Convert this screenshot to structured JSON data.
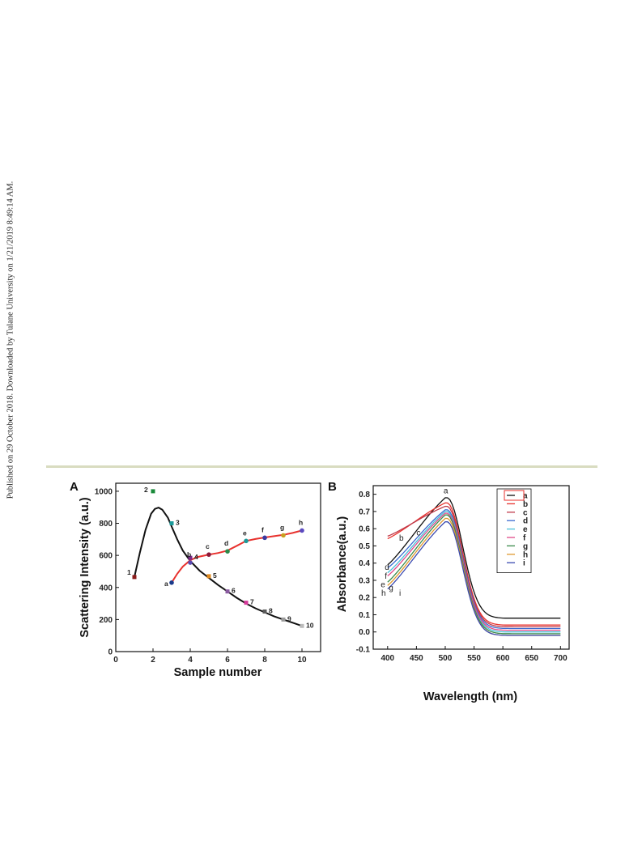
{
  "side_note": "Published on 29 October 2018. Downloaded by Tulane University on 1/21/2019 8:49:14 AM.",
  "chart_data": [
    {
      "panel": "A",
      "type": "line",
      "xlabel": "Sample number",
      "ylabel": "Scattering Intensity (a.u.)",
      "xlim": [
        0,
        11
      ],
      "ylim": [
        0,
        1050
      ],
      "xticks": [
        0,
        2,
        4,
        6,
        8,
        10
      ],
      "yticks": [
        0,
        200,
        400,
        600,
        800,
        1000
      ],
      "series": [
        {
          "color": "#111111",
          "labels": [
            "1",
            "2",
            "3",
            "4",
            "5",
            "6",
            "7",
            "8",
            "9",
            "10"
          ],
          "x": [
            1,
            2,
            3,
            4,
            5,
            6,
            7,
            8,
            9,
            10
          ],
          "y": [
            465,
            1000,
            800,
            585,
            470,
            375,
            305,
            250,
            200,
            160
          ],
          "point_colors": [
            "#8b1a1a",
            "#1a8a3a",
            "#1a9a9a",
            "#7a2a8a",
            "#e08a20",
            "#8a5aa0",
            "#d63a9a",
            "#5a5a5a",
            "#9a9a9a",
            "#bbbbbb"
          ],
          "curve": {
            "x": [
              1,
              1.3,
              1.6,
              1.9,
              2.1,
              2.3,
              2.5,
              2.8,
              3.0,
              3.3,
              3.6,
              4.0,
              4.5,
              5.0,
              5.5,
              6.0,
              6.5,
              7.0,
              7.5,
              8.0,
              8.5,
              9.0,
              9.5,
              10.0
            ],
            "y": [
              465,
              620,
              760,
              860,
              890,
              898,
              885,
              835,
              780,
              700,
              630,
              565,
              505,
              460,
              415,
              375,
              335,
              300,
              270,
              245,
              220,
              200,
              180,
              160
            ]
          }
        },
        {
          "color": "#e8322e",
          "labels": [
            "a",
            "b",
            "c",
            "d",
            "e",
            "f",
            "g",
            "h"
          ],
          "x": [
            3,
            4,
            5,
            6,
            7,
            8,
            9,
            10
          ],
          "y": [
            430,
            555,
            605,
            625,
            690,
            710,
            725,
            755
          ],
          "point_colors": [
            "#1a3a8a",
            "#5a4ab0",
            "#8b1a3a",
            "#2a8a4a",
            "#1a9a9a",
            "#3a3aa0",
            "#c8a020",
            "#5a4ac0"
          ],
          "curve": {
            "x": [
              3,
              3.3,
              3.6,
              4.0,
              4.4,
              5.0,
              5.5,
              6.0,
              6.5,
              7.0,
              7.5,
              8.0,
              8.5,
              9.0,
              9.5,
              10.0
            ],
            "y": [
              430,
              485,
              530,
              570,
              590,
              605,
              615,
              630,
              660,
              690,
              702,
              712,
              720,
              728,
              740,
              755
            ]
          }
        }
      ]
    },
    {
      "panel": "B",
      "type": "line",
      "xlabel": "Wavelength (nm)",
      "ylabel": "Absorbance(a.u.)",
      "xlim": [
        375,
        715
      ],
      "ylim": [
        -0.1,
        0.85
      ],
      "xticks": [
        400,
        450,
        500,
        550,
        600,
        650,
        700
      ],
      "yticks": [
        -0.1,
        0.0,
        0.1,
        0.2,
        0.3,
        0.4,
        0.5,
        0.6,
        0.7,
        0.8
      ],
      "legend": {
        "placement": "top-right",
        "entries": [
          "a",
          "b",
          "c",
          "d",
          "e",
          "f",
          "g",
          "h",
          "i"
        ]
      },
      "curve_labels": [
        "a",
        "b",
        "c",
        "d",
        "e",
        "f",
        "g",
        "h",
        "i"
      ],
      "series": [
        {
          "name": "a",
          "color": "#111111",
          "peak": 0.78,
          "start": 0.33,
          "tail": 0.08
        },
        {
          "name": "b",
          "color": "#e8322e",
          "peak": 0.75,
          "start": 0.51,
          "tail": 0.04
        },
        {
          "name": "c",
          "color": "#c03a4a",
          "peak": 0.73,
          "start": 0.53,
          "tail": 0.03
        },
        {
          "name": "d",
          "color": "#3a6ad0",
          "peak": 0.71,
          "start": 0.32,
          "tail": 0.02
        },
        {
          "name": "e",
          "color": "#4ac0d8",
          "peak": 0.7,
          "start": 0.29,
          "tail": 0.0
        },
        {
          "name": "f",
          "color": "#e04a8a",
          "peak": 0.69,
          "start": 0.27,
          "tail": 0.01
        },
        {
          "name": "g",
          "color": "#3a8a4a",
          "peak": 0.68,
          "start": 0.23,
          "tail": -0.01
        },
        {
          "name": "h",
          "color": "#e09a30",
          "peak": 0.66,
          "start": 0.21,
          "tail": -0.02
        },
        {
          "name": "i",
          "color": "#3a4ab0",
          "peak": 0.64,
          "start": 0.19,
          "tail": -0.02
        }
      ]
    }
  ]
}
